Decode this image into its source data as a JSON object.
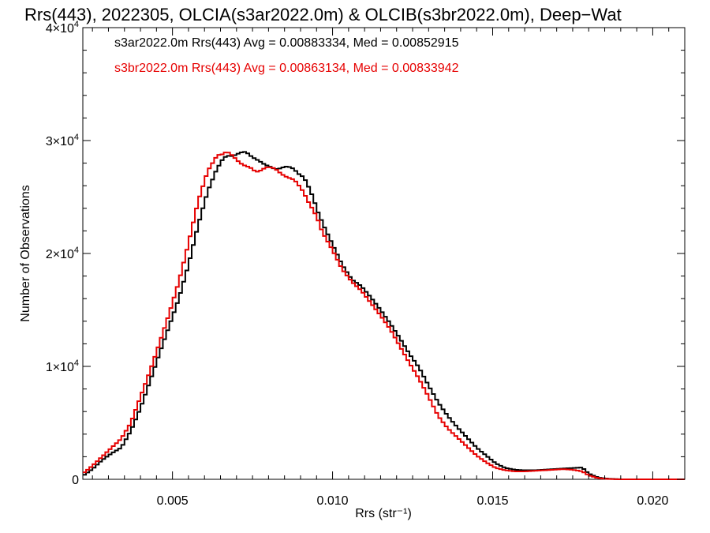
{
  "chart_data": {
    "type": "line",
    "title": "Rrs(443), 2022305, OLCIA(s3ar2022.0m) & OLCIB(s3br2022.0m), Deep−Wat",
    "xlabel": "Rrs (str⁻¹)",
    "ylabel": "Number of Observations",
    "xlim": [
      0.0022,
      0.021
    ],
    "ylim": [
      0,
      40000
    ],
    "x_ticks": [
      {
        "value": 0.005,
        "label": "0.005"
      },
      {
        "value": 0.01,
        "label": "0.010"
      },
      {
        "value": 0.015,
        "label": "0.015"
      },
      {
        "value": 0.02,
        "label": "0.020"
      }
    ],
    "y_ticks": [
      {
        "value": 0,
        "mantissa": "0",
        "exp": ""
      },
      {
        "value": 10000,
        "mantissa": "1×10",
        "exp": "4"
      },
      {
        "value": 20000,
        "mantissa": "2×10",
        "exp": "4"
      },
      {
        "value": 30000,
        "mantissa": "3×10",
        "exp": "4"
      },
      {
        "value": 40000,
        "mantissa": "4×10",
        "exp": "4"
      }
    ],
    "grid": false,
    "legend_position": "top-left",
    "step": 0.0001,
    "series": [
      {
        "name": "s3ar2022.0m Rrs(443) Avg = 0.00883334, Med = 0.00852915",
        "color": "#000000",
        "points": [
          [
            0.0022,
            300
          ],
          [
            0.0025,
            900
          ],
          [
            0.0028,
            1700
          ],
          [
            0.0031,
            2300
          ],
          [
            0.0034,
            2800
          ],
          [
            0.0037,
            4300
          ],
          [
            0.004,
            6300
          ],
          [
            0.0043,
            8700
          ],
          [
            0.0046,
            11200
          ],
          [
            0.0049,
            13600
          ],
          [
            0.0052,
            16000
          ],
          [
            0.0055,
            19000
          ],
          [
            0.0058,
            22500
          ],
          [
            0.0061,
            25500
          ],
          [
            0.0064,
            27600
          ],
          [
            0.0067,
            28700
          ],
          [
            0.007,
            28800
          ],
          [
            0.0073,
            28900
          ],
          [
            0.0076,
            28500
          ],
          [
            0.0079,
            27700
          ],
          [
            0.0082,
            27600
          ],
          [
            0.0085,
            27600
          ],
          [
            0.0088,
            27500
          ],
          [
            0.0091,
            26800
          ],
          [
            0.0094,
            24800
          ],
          [
            0.0097,
            22600
          ],
          [
            0.01,
            20800
          ],
          [
            0.0103,
            19000
          ],
          [
            0.0106,
            17700
          ],
          [
            0.0109,
            17100
          ],
          [
            0.0112,
            16100
          ],
          [
            0.0115,
            15000
          ],
          [
            0.0118,
            13800
          ],
          [
            0.0121,
            12500
          ],
          [
            0.0124,
            11100
          ],
          [
            0.0127,
            9900
          ],
          [
            0.013,
            8300
          ],
          [
            0.0133,
            6800
          ],
          [
            0.0136,
            5600
          ],
          [
            0.0139,
            4600
          ],
          [
            0.0142,
            3700
          ],
          [
            0.0145,
            2800
          ],
          [
            0.0148,
            2100
          ],
          [
            0.0151,
            1400
          ],
          [
            0.0154,
            1000
          ],
          [
            0.0157,
            850
          ],
          [
            0.016,
            800
          ],
          [
            0.0163,
            800
          ],
          [
            0.0166,
            850
          ],
          [
            0.0169,
            900
          ],
          [
            0.0172,
            950
          ],
          [
            0.0175,
            1000
          ],
          [
            0.0178,
            1050
          ],
          [
            0.018,
            500
          ],
          [
            0.0183,
            150
          ],
          [
            0.0186,
            50
          ],
          [
            0.019,
            0
          ],
          [
            0.021,
            0
          ]
        ]
      },
      {
        "name": "s3br2022.0m Rrs(443) Avg = 0.00863134, Med = 0.00833942",
        "color": "#e60000",
        "points": [
          [
            0.0022,
            500
          ],
          [
            0.0025,
            1200
          ],
          [
            0.0028,
            2000
          ],
          [
            0.0031,
            2800
          ],
          [
            0.0034,
            3600
          ],
          [
            0.0037,
            5000
          ],
          [
            0.004,
            7300
          ],
          [
            0.0043,
            9600
          ],
          [
            0.0046,
            12100
          ],
          [
            0.0049,
            14700
          ],
          [
            0.0052,
            17500
          ],
          [
            0.0055,
            20900
          ],
          [
            0.0058,
            24600
          ],
          [
            0.0061,
            27300
          ],
          [
            0.0064,
            28700
          ],
          [
            0.0067,
            28900
          ],
          [
            0.007,
            28400
          ],
          [
            0.0073,
            27700
          ],
          [
            0.0076,
            27200
          ],
          [
            0.0079,
            27700
          ],
          [
            0.0082,
            27400
          ],
          [
            0.0085,
            27000
          ],
          [
            0.0088,
            26400
          ],
          [
            0.0091,
            25500
          ],
          [
            0.0094,
            23800
          ],
          [
            0.0097,
            21800
          ],
          [
            0.01,
            20300
          ],
          [
            0.0103,
            18600
          ],
          [
            0.0106,
            17500
          ],
          [
            0.0109,
            16700
          ],
          [
            0.0112,
            15600
          ],
          [
            0.0115,
            14500
          ],
          [
            0.0118,
            13300
          ],
          [
            0.0121,
            11800
          ],
          [
            0.0124,
            10300
          ],
          [
            0.0127,
            8900
          ],
          [
            0.013,
            7300
          ],
          [
            0.0133,
            5600
          ],
          [
            0.0136,
            4500
          ],
          [
            0.0139,
            3700
          ],
          [
            0.0142,
            2900
          ],
          [
            0.0145,
            2100
          ],
          [
            0.0148,
            1500
          ],
          [
            0.0151,
            1000
          ],
          [
            0.0154,
            800
          ],
          [
            0.0157,
            700
          ],
          [
            0.016,
            700
          ],
          [
            0.0163,
            750
          ],
          [
            0.0166,
            800
          ],
          [
            0.0169,
            850
          ],
          [
            0.0172,
            900
          ],
          [
            0.0175,
            850
          ],
          [
            0.0178,
            700
          ],
          [
            0.018,
            350
          ],
          [
            0.0183,
            100
          ],
          [
            0.0186,
            30
          ],
          [
            0.019,
            0
          ],
          [
            0.021,
            0
          ]
        ]
      }
    ]
  }
}
